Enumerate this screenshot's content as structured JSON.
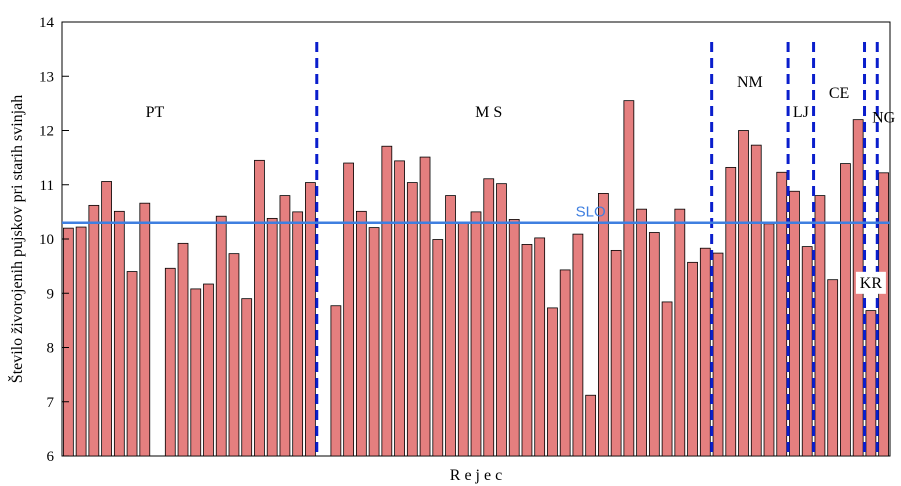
{
  "chart_data": {
    "type": "bar",
    "title": "",
    "xlabel": "R e j e c",
    "ylabel": "Število živorojenih pujskov pri starih svinjah",
    "ylim": [
      6,
      14
    ],
    "yticks": [
      6,
      7,
      8,
      9,
      10,
      11,
      12,
      13,
      14
    ],
    "bar_color": "#e57f7f",
    "values": [
      10.2,
      10.22,
      10.62,
      11.06,
      10.51,
      9.4,
      10.66,
      null,
      9.46,
      9.92,
      9.08,
      9.17,
      10.42,
      9.73,
      8.9,
      11.45,
      10.38,
      10.8,
      10.5,
      11.04,
      null,
      8.77,
      11.4,
      10.51,
      10.21,
      11.71,
      11.44,
      11.04,
      11.51,
      9.99,
      10.8,
      10.29,
      10.5,
      11.11,
      11.02,
      10.36,
      9.9,
      10.02,
      8.73,
      9.43,
      10.09,
      7.12,
      10.84,
      9.79,
      12.55,
      10.55,
      10.12,
      8.84,
      10.55,
      9.57,
      9.83,
      9.74,
      11.32,
      12.0,
      11.73,
      10.28,
      11.23,
      10.88,
      9.86,
      10.8,
      9.25,
      11.39,
      12.2,
      8.68,
      11.22
    ],
    "reference_line": {
      "name": "SLO",
      "value": 10.3,
      "color": "#3f7fe0"
    },
    "regions": [
      {
        "label": "PT",
        "label_y": 12.25,
        "boxed": false
      },
      {
        "label": "M S",
        "label_y": 12.25,
        "boxed": false
      },
      {
        "label": "NM",
        "label_y": 12.8,
        "boxed": false
      },
      {
        "label": "LJ",
        "label_y": 12.25,
        "boxed": false
      },
      {
        "label": "CE",
        "label_y": 12.6,
        "boxed": false
      },
      {
        "label": "KR",
        "label_y": 9.1,
        "boxed": true
      },
      {
        "label": "NG",
        "label_y": 12.15,
        "boxed": false
      }
    ],
    "divider_color": "#0a1ecc",
    "grid": false,
    "legend": "none"
  }
}
